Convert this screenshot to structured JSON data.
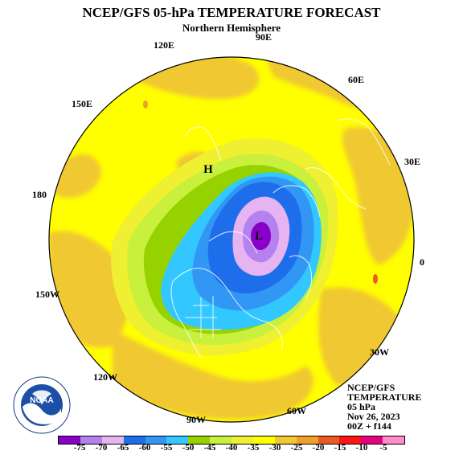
{
  "title": "NCEP/GFS 05-hPa TEMPERATURE FORECAST",
  "subtitle": "Northern Hemisphere",
  "longitude_labels": {
    "lon_90e": "90E",
    "lon_120e": "120E",
    "lon_60e": "60E",
    "lon_150e": "150E",
    "lon_30e": "30E",
    "lon_180": "180",
    "lon_0": "0",
    "lon_150w": "150W",
    "lon_30w": "30W",
    "lon_120w": "120W",
    "lon_60w": "60W",
    "lon_90w": "90W"
  },
  "markers": {
    "high": "H",
    "low": "L"
  },
  "info": {
    "model": "NCEP/GFS",
    "variable": "TEMPERATURE",
    "level": "05 hPa",
    "date": "Nov 26, 2023",
    "run": "00Z + f144"
  },
  "logo": {
    "text": "NOAA",
    "icon": "noaa-logo-icon"
  },
  "colorbar": {
    "colors": [
      "#8a00c8",
      "#b482ee",
      "#e6b4f0",
      "#1e6eeb",
      "#3296f5",
      "#32c8ff",
      "#96d200",
      "#c8f03c",
      "#f0f032",
      "#ffff00",
      "#f0c832",
      "#f0a028",
      "#eb5a1e",
      "#ff1414",
      "#e60082",
      "#ff8cc8"
    ],
    "labels": [
      "-75",
      "-70",
      "-65",
      "-60",
      "-55",
      "-50",
      "-45",
      "-40",
      "-35",
      "-30",
      "-25",
      "-20",
      "-15",
      "-10",
      "-5"
    ]
  }
}
